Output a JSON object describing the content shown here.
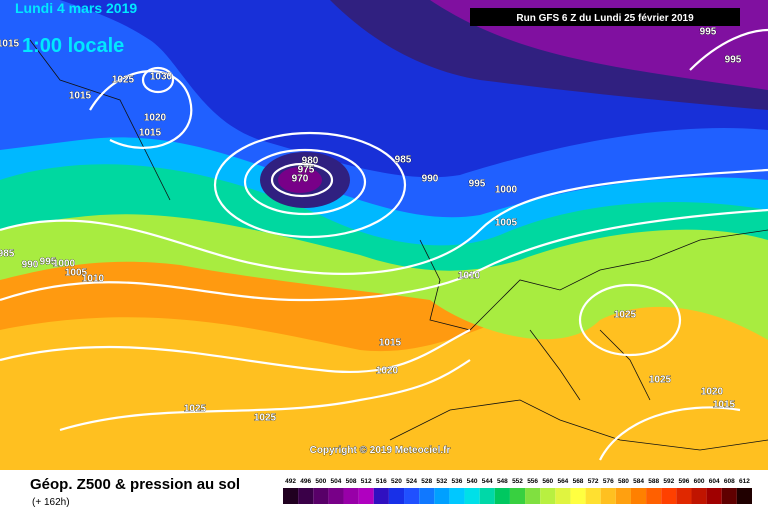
{
  "header": {
    "date": "Lundi 4 mars 2019",
    "time": "1:00 locale",
    "run": "Run GFS 6 Z du Lundi 25 février 2019"
  },
  "isobar_labels": [
    "1015",
    "1025",
    "1030",
    "1015",
    "1020",
    "1015",
    "980",
    "975",
    "970",
    "985",
    "990",
    "995",
    "1000",
    "1005",
    "995",
    "995",
    "985",
    "990",
    "995",
    "1000",
    "1005",
    "1010",
    "1010",
    "1025",
    "1015",
    "1020",
    "1025",
    "1020",
    "1015",
    "1025",
    "1025"
  ],
  "copyright": "Copyright © 2019 Meteociel.fr",
  "footer": {
    "title": "Géop. Z500 & pression au sol",
    "lead": "(+ 162h)"
  },
  "scale": {
    "labels": [
      "492",
      "496",
      "500",
      "504",
      "508",
      "512",
      "516",
      "520",
      "524",
      "528",
      "532",
      "536",
      "540",
      "544",
      "548",
      "552",
      "556",
      "560",
      "564",
      "568",
      "572",
      "576",
      "580",
      "584",
      "588",
      "592",
      "596",
      "600",
      "604",
      "608",
      "612"
    ],
    "colors": [
      "#200020",
      "#3a0048",
      "#580068",
      "#780088",
      "#9800a8",
      "#b000c0",
      "#3010c0",
      "#1830e8",
      "#2050ff",
      "#1078ff",
      "#00a0ff",
      "#00c8ff",
      "#00e0e8",
      "#00d8a8",
      "#00c860",
      "#38d040",
      "#80e040",
      "#b8f040",
      "#e0f440",
      "#ffff40",
      "#ffe030",
      "#ffc020",
      "#ffa010",
      "#ff8000",
      "#ff6000",
      "#ff4000",
      "#e02800",
      "#c01400",
      "#a00000",
      "#600000",
      "#200000"
    ]
  }
}
